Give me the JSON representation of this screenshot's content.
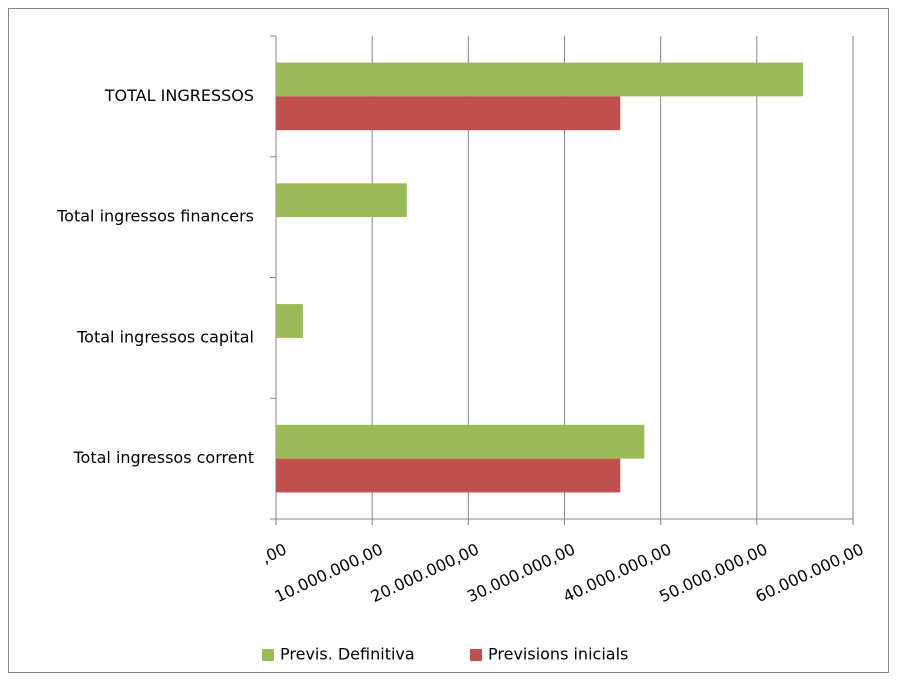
{
  "chart_data": {
    "type": "hbar",
    "categories": [
      "Total ingressos corrent",
      "Total ingressos capital",
      "Total ingressos financers",
      "TOTAL INGRESSOS"
    ],
    "series": [
      {
        "name": "Previs. Definitiva",
        "color": "#9bbb59",
        "values": [
          38300000,
          2800000,
          13600000,
          54800000
        ]
      },
      {
        "name": "Previsions inicials",
        "color": "#c0504d",
        "values": [
          35800000,
          null,
          null,
          35800000
        ]
      }
    ],
    "xlim": [
      0,
      60000000
    ],
    "xticks": [
      {
        "value": 0,
        "label": ",00"
      },
      {
        "value": 10000000,
        "label": "10.000.000,00"
      },
      {
        "value": 20000000,
        "label": "20.000.000,00"
      },
      {
        "value": 30000000,
        "label": "30.000.000,00"
      },
      {
        "value": 40000000,
        "label": "40.000.000,00"
      },
      {
        "value": 50000000,
        "label": "50.000.000,00"
      },
      {
        "value": 60000000,
        "label": "60.000.000,00"
      }
    ],
    "grid": true,
    "legend": "bottom"
  }
}
